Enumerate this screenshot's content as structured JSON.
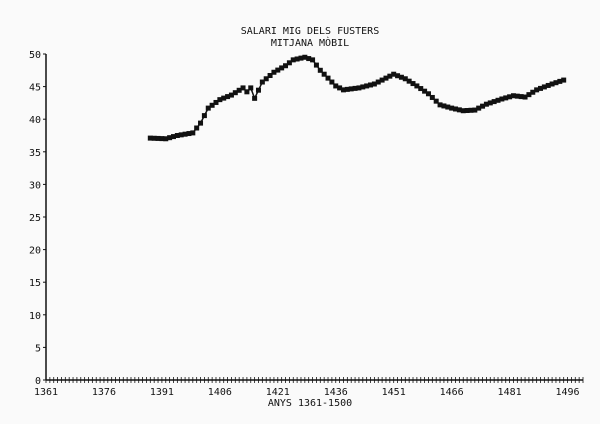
{
  "chart_data": {
    "type": "line",
    "title": "SALARI MIG DELS FUSTERS",
    "subtitle": "MITJANA MÒBIL",
    "xlabel": "ANYS 1361-1500",
    "ylabel": "",
    "xlim": [
      1361,
      1500
    ],
    "ylim": [
      0,
      50
    ],
    "xticks": [
      "1361",
      "1376",
      "1391",
      "1406",
      "1421",
      "1436",
      "1451",
      "1466",
      "1481",
      "1496"
    ],
    "yticks": [
      "0",
      "5",
      "10",
      "15",
      "20",
      "25",
      "30",
      "35",
      "40",
      "45",
      "50"
    ],
    "grid": false,
    "color": "#111111",
    "x": [
      1388,
      1392,
      1395,
      1399,
      1401,
      1403,
      1406,
      1409,
      1412,
      1413,
      1414,
      1415,
      1417,
      1420,
      1423,
      1425,
      1428,
      1430,
      1432,
      1434,
      1436,
      1438,
      1442,
      1446,
      1449,
      1451,
      1454,
      1457,
      1460,
      1463,
      1466,
      1469,
      1472,
      1475,
      1479,
      1482,
      1485,
      1488,
      1492,
      1495
    ],
    "y": [
      37.1,
      37.0,
      37.5,
      37.9,
      39.4,
      41.7,
      43.0,
      43.7,
      44.8,
      44.2,
      44.8,
      43.2,
      45.7,
      47.2,
      48.2,
      49.1,
      49.5,
      49.1,
      47.5,
      46.3,
      45.1,
      44.5,
      44.8,
      45.4,
      46.3,
      46.9,
      46.2,
      45.1,
      43.9,
      42.2,
      41.7,
      41.3,
      41.4,
      42.3,
      43.1,
      43.6,
      43.4,
      44.5,
      45.4,
      46.0
    ]
  }
}
